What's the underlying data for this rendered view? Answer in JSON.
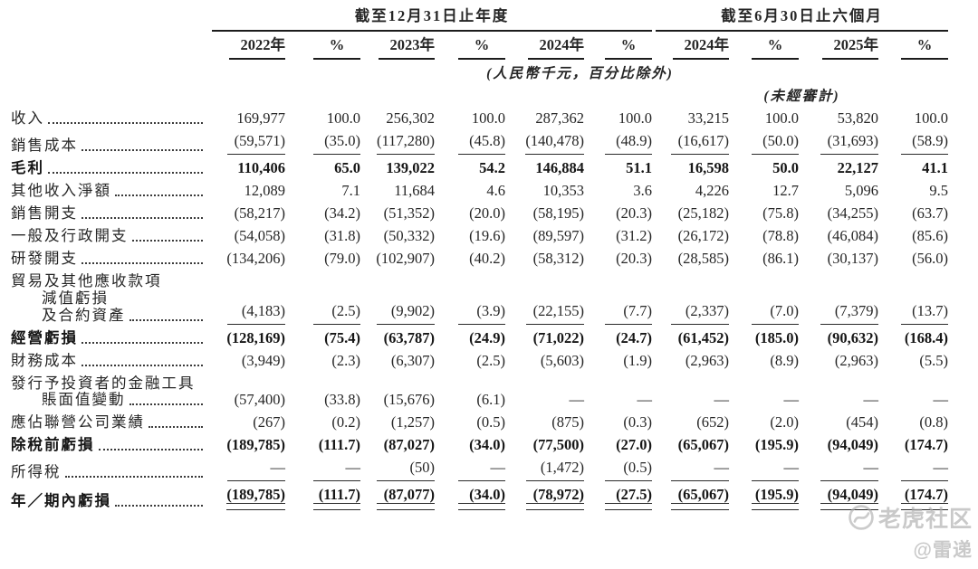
{
  "table": {
    "col_groups": [
      {
        "label": "截至12月31日止年度"
      },
      {
        "label": "截至6月30日止六個月"
      }
    ],
    "col_headers": [
      "2022年",
      "%",
      "2023年",
      "%",
      "2024年",
      "%",
      "2024年",
      "%",
      "2025年",
      "%"
    ],
    "unit_note": "(人民幣千元，百分比除外)",
    "unaudited_note": "(未經審計)",
    "rows": [
      {
        "label": "收入",
        "values": [
          "169,977",
          "100.0",
          "256,302",
          "100.0",
          "287,362",
          "100.0",
          "33,215",
          "100.0",
          "53,820",
          "100.0"
        ]
      },
      {
        "label": "銷售成本",
        "underline": "single",
        "values": [
          "(59,571)",
          "(35.0)",
          "(117,280)",
          "(45.8)",
          "(140,478)",
          "(48.9)",
          "(16,617)",
          "(50.0)",
          "(31,693)",
          "(58.9)"
        ]
      },
      {
        "label": "毛利",
        "bold": true,
        "values": [
          "110,406",
          "65.0",
          "139,022",
          "54.2",
          "146,884",
          "51.1",
          "16,598",
          "50.0",
          "22,127",
          "41.1"
        ]
      },
      {
        "label": "其他收入淨額",
        "values": [
          "12,089",
          "7.1",
          "11,684",
          "4.6",
          "10,353",
          "3.6",
          "4,226",
          "12.7",
          "5,096",
          "9.5"
        ]
      },
      {
        "label": "銷售開支",
        "values": [
          "(58,217)",
          "(34.2)",
          "(51,352)",
          "(20.0)",
          "(58,195)",
          "(20.3)",
          "(25,182)",
          "(75.8)",
          "(34,255)",
          "(63.7)"
        ]
      },
      {
        "label": "一般及行政開支",
        "values": [
          "(54,058)",
          "(31.8)",
          "(50,332)",
          "(19.6)",
          "(89,597)",
          "(31.2)",
          "(26,172)",
          "(78.8)",
          "(46,084)",
          "(85.6)"
        ]
      },
      {
        "label": "研發開支",
        "values": [
          "(134,206)",
          "(79.0)",
          "(102,907)",
          "(40.2)",
          "(58,312)",
          "(20.3)",
          "(28,585)",
          "(86.1)",
          "(30,137)",
          "(56.0)"
        ]
      },
      {
        "lines": [
          "貿易及其他應收款項",
          "減值虧損",
          "及合約資產"
        ],
        "underline": "single",
        "values": [
          "(4,183)",
          "(2.5)",
          "(9,902)",
          "(3.9)",
          "(22,155)",
          "(7.7)",
          "(2,337)",
          "(7.0)",
          "(7,379)",
          "(13.7)"
        ]
      },
      {
        "label": "經營虧損",
        "bold": true,
        "values": [
          "(128,169)",
          "(75.4)",
          "(63,787)",
          "(24.9)",
          "(71,022)",
          "(24.7)",
          "(61,452)",
          "(185.0)",
          "(90,632)",
          "(168.4)"
        ]
      },
      {
        "label": "財務成本",
        "values": [
          "(3,949)",
          "(2.3)",
          "(6,307)",
          "(2.5)",
          "(5,603)",
          "(1.9)",
          "(2,963)",
          "(8.9)",
          "(2,963)",
          "(5.5)"
        ]
      },
      {
        "lines": [
          "發行予投資者的金融工具",
          "賬面值變動"
        ],
        "values": [
          "(57,400)",
          "(33.8)",
          "(15,676)",
          "(6.1)",
          "—",
          "—",
          "—",
          "—",
          "—",
          "—"
        ]
      },
      {
        "label": "應佔聯營公司業績",
        "values": [
          "(267)",
          "(0.2)",
          "(1,257)",
          "(0.5)",
          "(875)",
          "(0.3)",
          "(652)",
          "(2.0)",
          "(454)",
          "(0.8)"
        ]
      },
      {
        "label": "除稅前虧損",
        "bold": true,
        "values": [
          "(189,785)",
          "(111.7)",
          "(87,027)",
          "(34.0)",
          "(77,500)",
          "(27.0)",
          "(65,067)",
          "(195.9)",
          "(94,049)",
          "(174.7)"
        ]
      },
      {
        "label": "所得稅",
        "underline": "single",
        "values": [
          "—",
          "—",
          "(50)",
          "—",
          "(1,472)",
          "(0.5)",
          "—",
          "—",
          "—",
          "—"
        ]
      },
      {
        "label": "年／期內虧損",
        "bold": true,
        "underline": "double",
        "values": [
          "(189,785)",
          "(111.7)",
          "(87,077)",
          "(34.0)",
          "(78,972)",
          "(27.5)",
          "(65,067)",
          "(195.9)",
          "(94,049)",
          "(174.7)"
        ]
      }
    ]
  },
  "watermark": {
    "brand": "老虎社区",
    "handle": "@雷递"
  }
}
